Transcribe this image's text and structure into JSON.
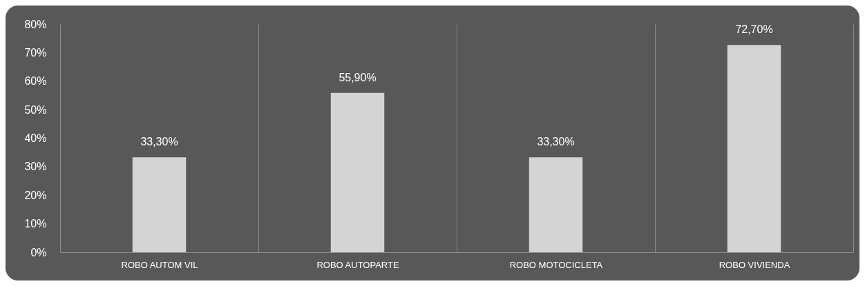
{
  "chart_data": {
    "type": "bar",
    "categories": [
      "ROBO AUTOM VIL",
      "ROBO AUTOPARTE",
      "ROBO MOTOCICLETA",
      "ROBO VIVIENDA"
    ],
    "values": [
      33.3,
      55.9,
      33.3,
      72.7
    ],
    "value_labels": [
      "33,30%",
      "55,90%",
      "33,30%",
      "72,70%"
    ],
    "color": "#d4d4d4",
    "ylim": [
      0,
      80
    ],
    "yticks": [
      {
        "value": 0,
        "label": "0%"
      },
      {
        "value": 10,
        "label": "10%"
      },
      {
        "value": 20,
        "label": "20%"
      },
      {
        "value": 30,
        "label": "30%"
      },
      {
        "value": 40,
        "label": "40%"
      },
      {
        "value": 50,
        "label": "50%"
      },
      {
        "value": 60,
        "label": "60%"
      },
      {
        "value": 70,
        "label": "70%"
      },
      {
        "value": 80,
        "label": "80%"
      }
    ],
    "grid": "x"
  }
}
